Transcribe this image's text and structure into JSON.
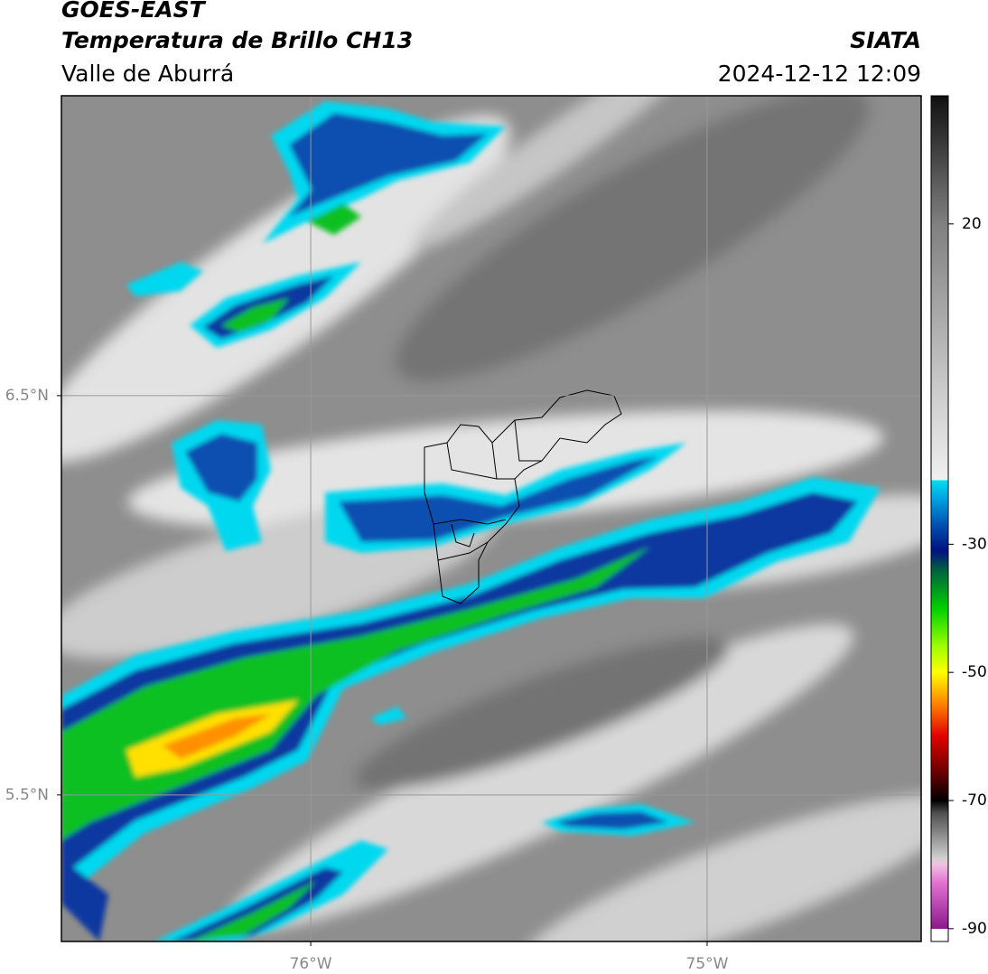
{
  "header": {
    "satellite": "GOES-EAST",
    "product": "Temperatura de Brillo CH13",
    "region": "Valle de Aburrá",
    "source": "SIATA",
    "datetime": "2024-12-12 12:09"
  },
  "map": {
    "xlim": [
      -76.629,
      -74.46
    ],
    "ylim": [
      5.133,
      7.251
    ],
    "xticks": [
      {
        "value": -76,
        "label": "76°W"
      },
      {
        "value": -75,
        "label": "75°W"
      }
    ],
    "yticks": [
      {
        "value": 6.5,
        "label": "6.5°N"
      },
      {
        "value": 5.5,
        "label": "5.5°N"
      }
    ],
    "grid": true,
    "grid_color": "#999999"
  },
  "colorbar": {
    "lim": [
      -92,
      40
    ],
    "ticks": [
      20,
      -30,
      -50,
      -70,
      -90
    ],
    "colors": [
      {
        "value": 40,
        "color": "#101010"
      },
      {
        "value": 20,
        "color": "#808080"
      },
      {
        "value": -5,
        "color": "#c8c8c8"
      },
      {
        "value": -20,
        "color": "#f0f0f0"
      },
      {
        "value": -20,
        "color": "#00e0f0"
      },
      {
        "value": -23,
        "color": "#00a0e0"
      },
      {
        "value": -27,
        "color": "#0050b0"
      },
      {
        "value": -31,
        "color": "#001080"
      },
      {
        "value": -34,
        "color": "#006040"
      },
      {
        "value": -40,
        "color": "#00d000"
      },
      {
        "value": -46,
        "color": "#a0ff00"
      },
      {
        "value": -50,
        "color": "#ffff00"
      },
      {
        "value": -55,
        "color": "#ff8000"
      },
      {
        "value": -60,
        "color": "#e00000"
      },
      {
        "value": -66,
        "color": "#600000"
      },
      {
        "value": -70,
        "color": "#000000"
      },
      {
        "value": -72,
        "color": "#505050"
      },
      {
        "value": -79,
        "color": "#d0d0d0"
      },
      {
        "value": -80,
        "color": "#f0c0e0"
      },
      {
        "value": -83,
        "color": "#e070d0"
      },
      {
        "value": -90,
        "color": "#8a1a8a"
      },
      {
        "value": -90,
        "color": "#ffffff"
      },
      {
        "value": -92,
        "color": "#ffffff"
      }
    ]
  }
}
